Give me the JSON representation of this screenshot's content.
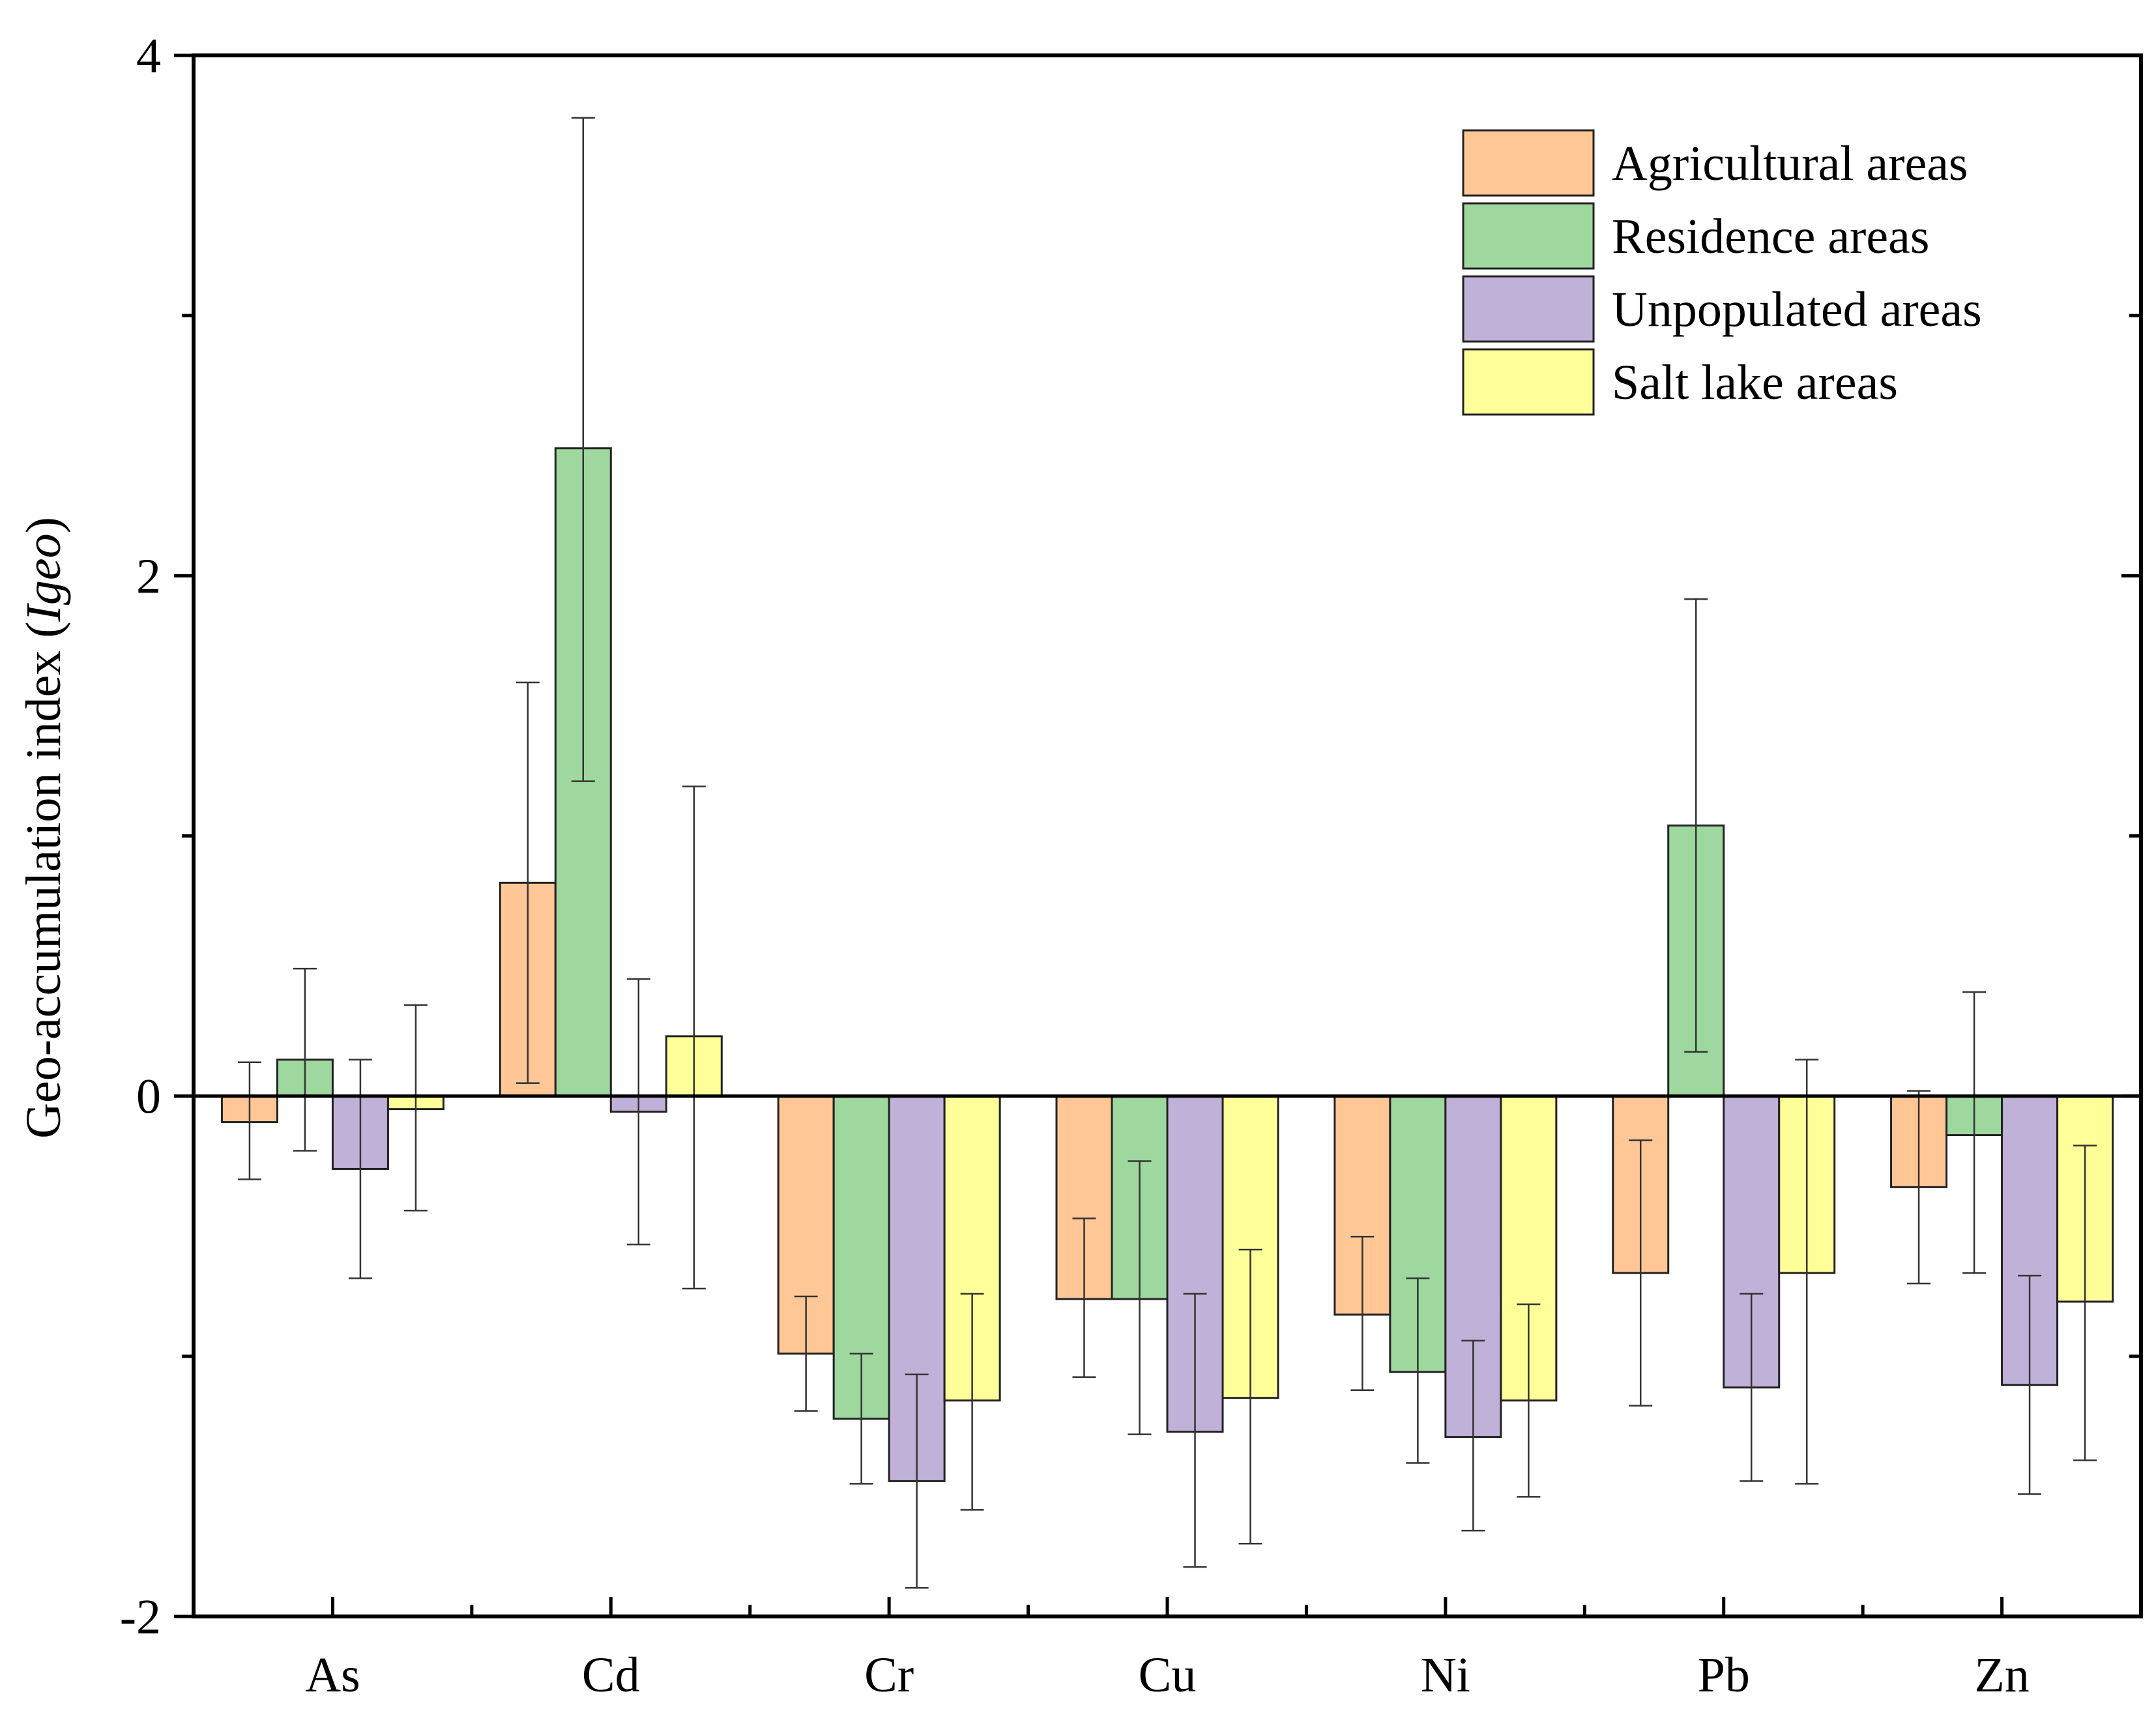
{
  "chart_data": {
    "type": "bar",
    "title": "",
    "xlabel": "",
    "ylabel_prefix": "Geo-accumulation index (",
    "ylabel_italic": "Igeo",
    "ylabel_suffix": ")",
    "ylim": [
      -2,
      4
    ],
    "yticks": [
      -2,
      0,
      2,
      4
    ],
    "ytick_labels": [
      "-2",
      "0",
      "2",
      "4"
    ],
    "legend_position": "top-right",
    "categories": [
      "As",
      "Cd",
      "Cr",
      "Cu",
      "Ni",
      "Pb",
      "Zn"
    ],
    "series": [
      {
        "name": "Agricultural areas",
        "color": "#FFC796",
        "values": [
          -0.1,
          0.82,
          -0.99,
          -0.78,
          -0.84,
          -0.68,
          -0.35
        ],
        "err_low": [
          -0.32,
          0.05,
          -1.21,
          -1.08,
          -1.13,
          -1.19,
          -0.72
        ],
        "err_high": [
          0.13,
          1.59,
          -0.77,
          -0.47,
          -0.54,
          -0.17,
          0.02
        ]
      },
      {
        "name": "Residence areas",
        "color": "#9ED89E",
        "values": [
          0.14,
          2.49,
          -1.24,
          -0.78,
          -1.06,
          1.04,
          -0.15
        ],
        "err_low": [
          -0.21,
          1.21,
          -1.49,
          -1.3,
          -1.41,
          0.17,
          -0.68
        ],
        "err_high": [
          0.49,
          3.76,
          -0.99,
          -0.25,
          -0.7,
          1.91,
          0.4
        ]
      },
      {
        "name": "Unpopulated areas",
        "color": "#C0B1D8",
        "values": [
          -0.28,
          -0.06,
          -1.48,
          -1.29,
          -1.31,
          -1.12,
          -1.11
        ],
        "err_low": [
          -0.7,
          -0.57,
          -1.89,
          -1.81,
          -1.67,
          -1.48,
          -1.53
        ],
        "err_high": [
          0.14,
          0.45,
          -1.07,
          -0.76,
          -0.94,
          -0.76,
          -0.69
        ]
      },
      {
        "name": "Salt lake areas",
        "color": "#FFFF99",
        "values": [
          -0.05,
          0.23,
          -1.17,
          -1.16,
          -1.17,
          -0.68,
          -0.79
        ],
        "err_low": [
          -0.44,
          -0.74,
          -1.59,
          -1.72,
          -1.54,
          -1.49,
          -1.4
        ],
        "err_high": [
          0.35,
          1.19,
          -0.76,
          -0.59,
          -0.8,
          0.14,
          -0.19
        ]
      }
    ]
  }
}
